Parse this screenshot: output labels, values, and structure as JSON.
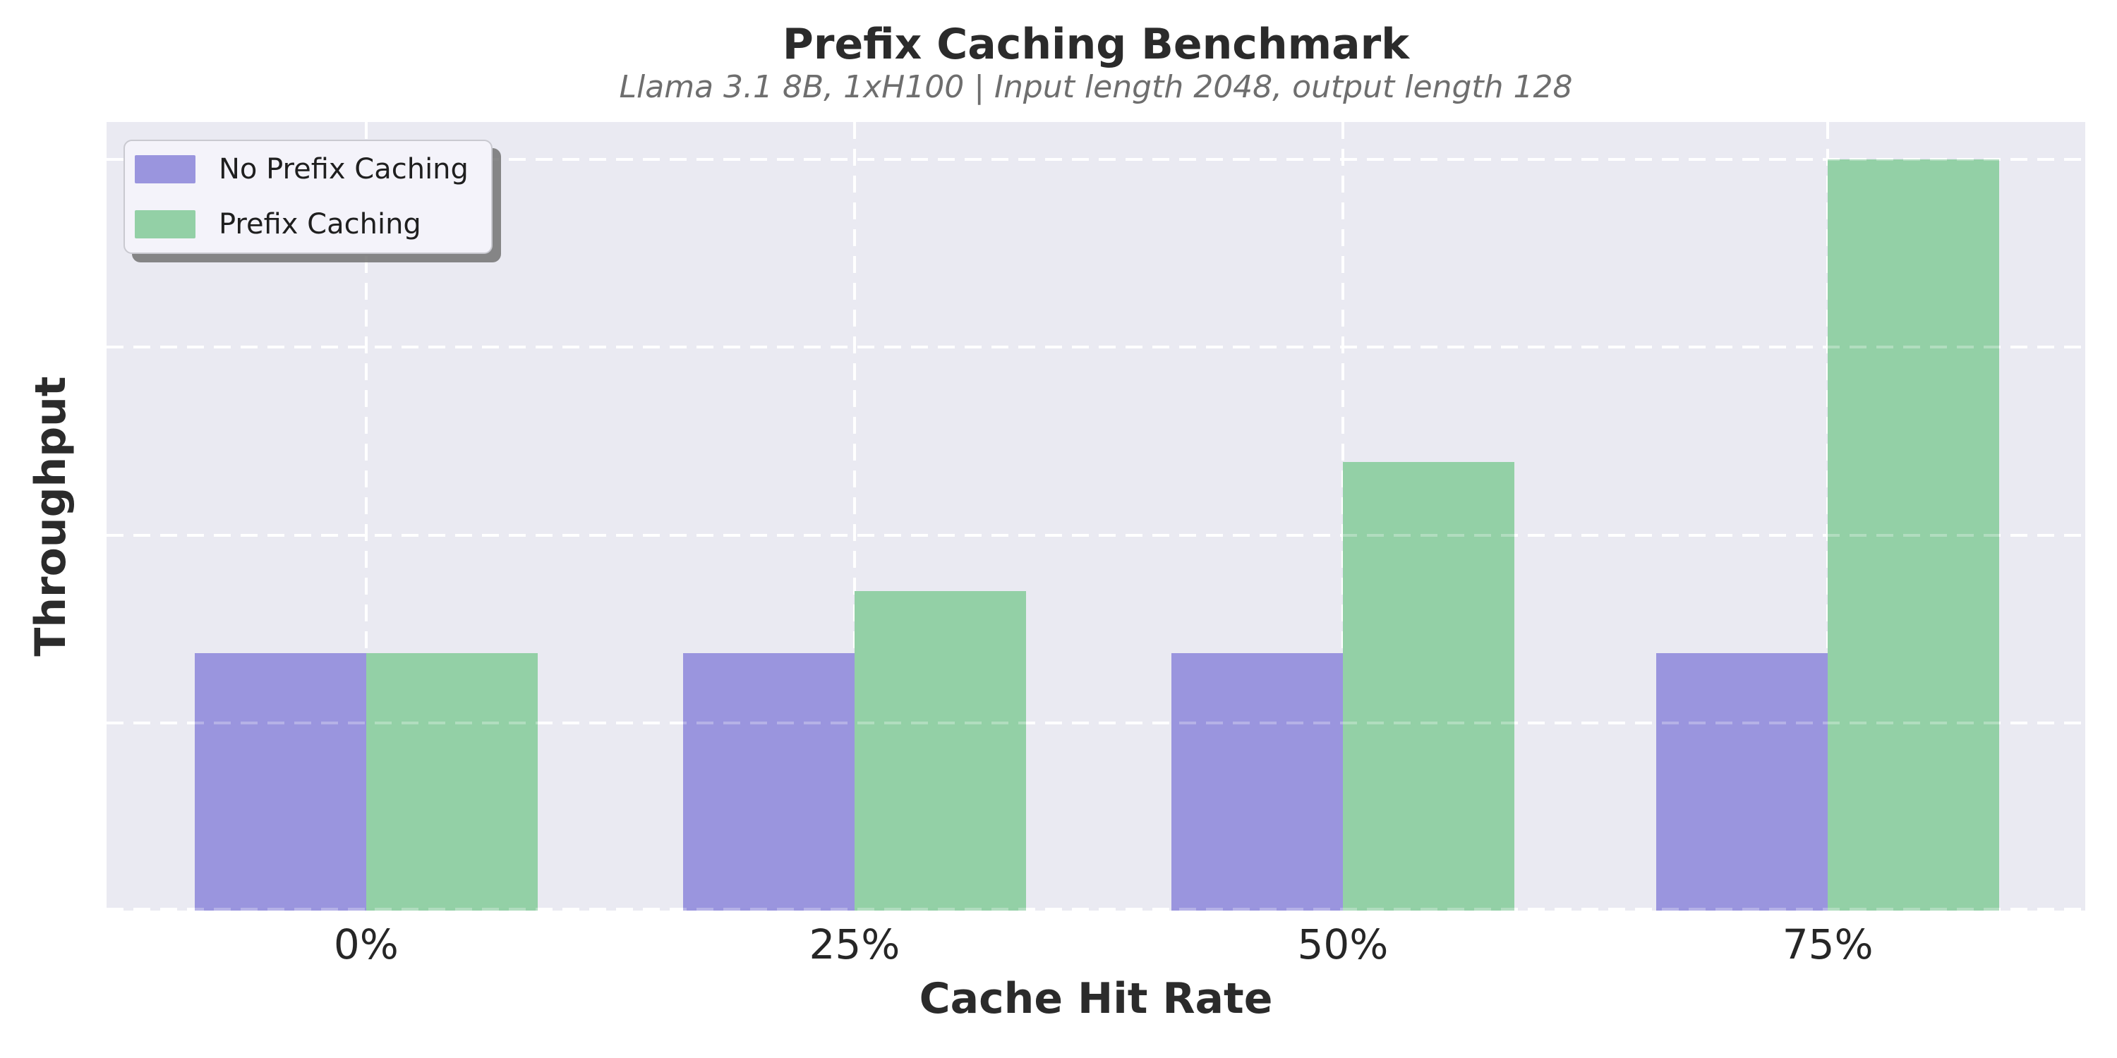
{
  "chart_data": {
    "type": "bar",
    "title": "Prefix Caching Benchmark",
    "subtitle": "Llama 3.1 8B, 1xH100 | Input length 2048, output length 128",
    "xlabel": "Cache Hit Rate",
    "ylabel": "Throughput",
    "categories": [
      "0%",
      "25%",
      "50%",
      "75%"
    ],
    "series": [
      {
        "name": "No Prefix Caching",
        "color": "#9a95de",
        "values": [
          1.37,
          1.37,
          1.37,
          1.37
        ]
      },
      {
        "name": "Prefix Caching",
        "color": "#93d0a6",
        "values": [
          1.37,
          1.7,
          2.39,
          4.0
        ]
      }
    ],
    "ylim": [
      0,
      4.2
    ],
    "y_gridlines": [
      0,
      1,
      2,
      3,
      4
    ],
    "y_tick_labels": [],
    "grid": "both-axes-dashed-white",
    "legend_position": "upper left",
    "note": "y-axis shows no numeric tick labels; series values estimated in gridline units"
  },
  "style": {
    "plot_background": "#eaeaf2",
    "grid_color": "#ffffff",
    "title_color": "#2b2b2b",
    "subtitle_color": "#6e6e6e",
    "tick_label_color": "#262626",
    "figure_background": "#ffffff"
  }
}
